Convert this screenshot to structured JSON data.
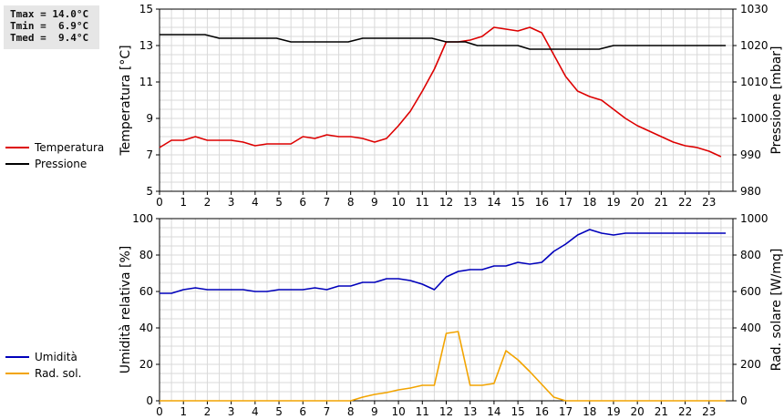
{
  "stats": {
    "tmax": "Tmax = 14.0°C",
    "tmin": "Tmin =  6.9°C",
    "tmed": "Tmed =  9.4°C"
  },
  "colors": {
    "temperatura": "#dd0000",
    "pressione": "#000000",
    "umidita": "#0000bb",
    "radiazione": "#f2a400",
    "grid": "#d9d9d9",
    "frame": "#000000"
  },
  "chart_data": [
    {
      "type": "line",
      "title": "",
      "xlabel": "",
      "ylabel": "Temperatura [°C]",
      "y2label": "Pressione [mbar]",
      "xlim": [
        0,
        24
      ],
      "ylim": [
        5,
        15
      ],
      "y2lim": [
        980,
        1030
      ],
      "x_ticks": [
        "0",
        "1",
        "2",
        "3",
        "4",
        "5",
        "6",
        "7",
        "8",
        "9",
        "10",
        "11",
        "12",
        "13",
        "14",
        "15",
        "16",
        "17",
        "18",
        "19",
        "20",
        "21",
        "22",
        "23"
      ],
      "y_ticks": [
        "5",
        "7",
        "9",
        "11",
        "13",
        "15"
      ],
      "y2_ticks": [
        "980",
        "990",
        "1000",
        "1010",
        "1020",
        "1030"
      ],
      "grid": true,
      "legend_position": "left",
      "series": [
        {
          "name": "Temperatura",
          "axis": "left",
          "color": "#dd0000",
          "x": [
            0,
            0.5,
            1,
            1.5,
            2,
            3,
            3.5,
            4,
            4.5,
            5,
            5.5,
            6,
            6.5,
            7,
            7.5,
            8,
            8.5,
            9,
            9.5,
            10,
            10.5,
            11,
            11.5,
            12,
            12.5,
            13,
            13.5,
            14,
            14.5,
            15,
            15.5,
            16,
            16.5,
            17,
            17.5,
            18,
            18.5,
            19,
            19.5,
            20,
            20.5,
            21,
            21.5,
            22,
            22.5,
            23,
            23.5
          ],
          "values": [
            7.4,
            7.8,
            7.8,
            8.0,
            7.8,
            7.8,
            7.7,
            7.5,
            7.6,
            7.6,
            7.6,
            8.0,
            7.9,
            8.1,
            8.0,
            8.0,
            7.9,
            7.7,
            7.9,
            8.6,
            9.4,
            10.5,
            11.7,
            13.2,
            13.2,
            13.3,
            13.5,
            14.0,
            13.9,
            13.8,
            14.0,
            13.7,
            12.5,
            11.3,
            10.5,
            10.2,
            10.0,
            9.5,
            9.0,
            8.6,
            8.3,
            8.0,
            7.7,
            7.5,
            7.4,
            7.2,
            6.9
          ]
        },
        {
          "name": "Pressione",
          "axis": "right",
          "color": "#000000",
          "x": [
            0,
            1.9,
            2.5,
            4.9,
            5.5,
            7.9,
            8.5,
            11.4,
            12,
            12.8,
            13.3,
            15,
            15.5,
            18.4,
            19,
            23.7
          ],
          "values": [
            1023,
            1023,
            1022,
            1022,
            1021,
            1021,
            1022,
            1022,
            1021,
            1021,
            1020,
            1020,
            1019,
            1019,
            1020,
            1020
          ]
        }
      ]
    },
    {
      "type": "line",
      "title": "",
      "xlabel": "",
      "ylabel": "Umidità relativa [%]",
      "y2label": "Rad. solare [W/mq]",
      "xlim": [
        0,
        24
      ],
      "ylim": [
        0,
        100
      ],
      "y2lim": [
        0,
        1000
      ],
      "x_ticks": [
        "0",
        "1",
        "2",
        "3",
        "4",
        "5",
        "6",
        "7",
        "8",
        "9",
        "10",
        "11",
        "12",
        "13",
        "14",
        "15",
        "16",
        "17",
        "18",
        "19",
        "20",
        "21",
        "22",
        "23"
      ],
      "y_ticks": [
        "0",
        "20",
        "40",
        "60",
        "80",
        "100"
      ],
      "y2_ticks": [
        "0",
        "200",
        "400",
        "600",
        "800",
        "1000"
      ],
      "grid": true,
      "legend_position": "left",
      "series": [
        {
          "name": "Umidità",
          "axis": "left",
          "color": "#0000bb",
          "x": [
            0,
            0.5,
            1,
            1.5,
            2,
            3,
            3.5,
            4,
            4.5,
            5,
            5.5,
            6,
            6.5,
            7,
            7.5,
            8,
            8.5,
            9,
            9.5,
            10,
            10.5,
            11,
            11.5,
            12,
            12.5,
            13,
            13.5,
            14,
            14.5,
            15,
            15.5,
            16,
            16.5,
            17,
            17.5,
            18,
            18.5,
            19,
            19.5,
            20,
            21,
            22,
            23,
            23.7
          ],
          "values": [
            59,
            59,
            61,
            62,
            61,
            61,
            61,
            60,
            60,
            61,
            61,
            61,
            62,
            61,
            63,
            63,
            65,
            65,
            67,
            67,
            66,
            64,
            61,
            68,
            71,
            72,
            72,
            74,
            74,
            76,
            75,
            76,
            82,
            86,
            91,
            94,
            92,
            91,
            92,
            92,
            92,
            92,
            92,
            92
          ]
        },
        {
          "name": "Rad. sol.",
          "axis": "right",
          "color": "#f2a400",
          "x": [
            0,
            1,
            2,
            3,
            4,
            5,
            6,
            7,
            8,
            8.5,
            9,
            9.5,
            10,
            10.5,
            11,
            11.5,
            12,
            12.5,
            13,
            13.5,
            14,
            14.5,
            15,
            15.5,
            16,
            16.5,
            17,
            18,
            19,
            20,
            21,
            22,
            23,
            23.7
          ],
          "values": [
            0,
            0,
            0,
            0,
            0,
            0,
            0,
            0,
            0,
            20,
            35,
            45,
            60,
            70,
            85,
            85,
            370,
            380,
            85,
            85,
            95,
            275,
            225,
            160,
            90,
            20,
            0,
            0,
            0,
            0,
            0,
            0,
            0,
            0
          ]
        }
      ]
    }
  ]
}
